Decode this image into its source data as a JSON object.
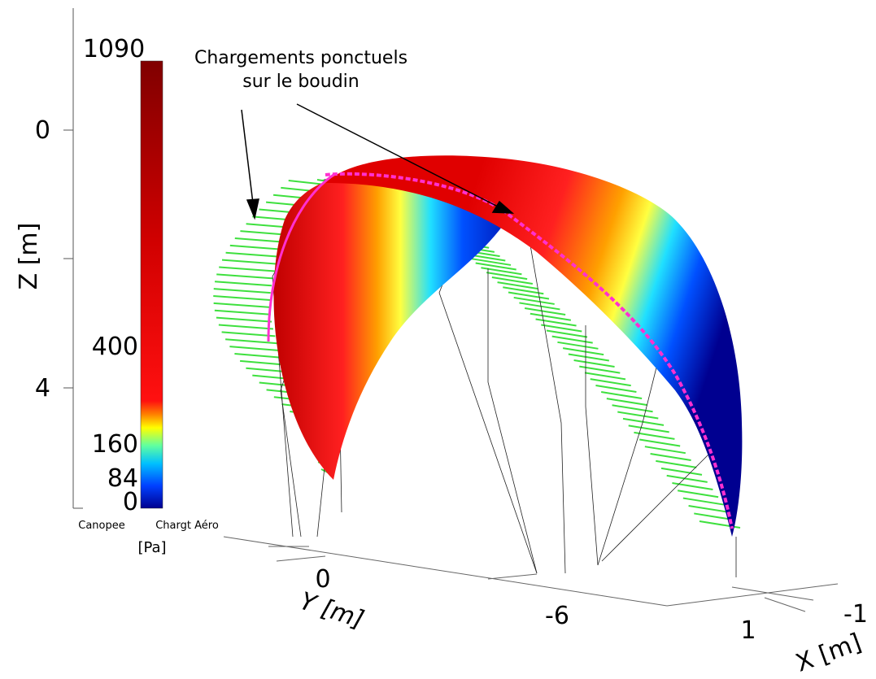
{
  "figure": {
    "annotation": {
      "line1": "Chargements ponctuels",
      "line2": "sur le boudin"
    },
    "z_axis": {
      "label": "Z [m]",
      "ticks": [
        "0",
        "4"
      ]
    },
    "colorbar": {
      "ticks": [
        "1090",
        "400",
        "160",
        "84",
        "0"
      ],
      "unit": "[Pa]",
      "left_caption": "Canopee",
      "right_caption": "Chargt Aéro"
    },
    "y_axis": {
      "label": "Y [m]",
      "ticks": [
        "0",
        "-6"
      ]
    },
    "x_axis": {
      "label": "X [m]",
      "ticks": [
        "1",
        "-1"
      ]
    }
  }
}
